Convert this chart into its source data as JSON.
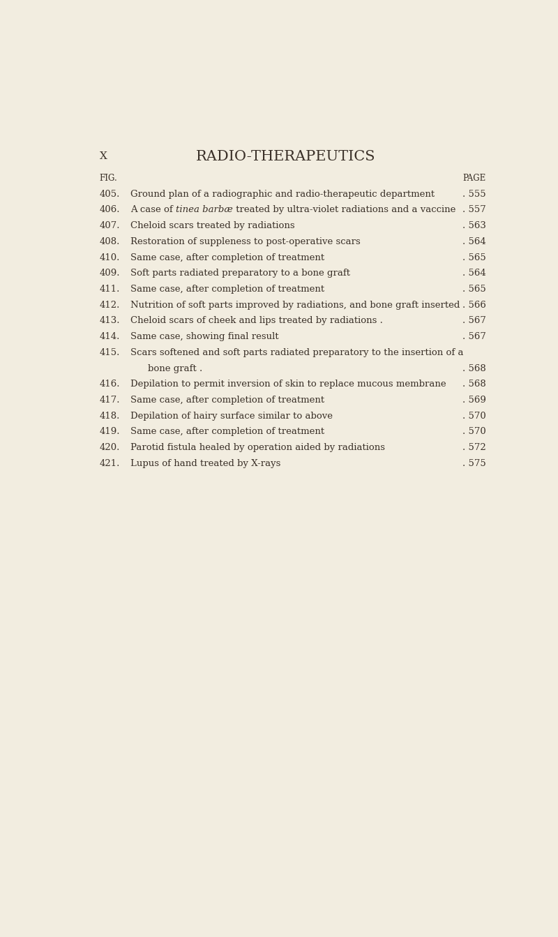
{
  "background_color": "#f2ede0",
  "page_width": 8.0,
  "page_height": 13.43,
  "title": "RADIO-THERAPEUTICS",
  "chapter_letter": "X",
  "col_header_left": "FIG.",
  "col_header_right": "PAGE",
  "title_fontsize": 15,
  "chapter_fontsize": 11,
  "header_fontsize": 8.5,
  "entry_fontsize": 9.5,
  "text_color": "#3a3028",
  "entries": [
    {
      "fig": "405.",
      "text": "Ground plan of a radiographic and radio-therapeutic department",
      "suffix": " .",
      "page": "555",
      "italic_part": null,
      "continuation": false
    },
    {
      "fig": "406.",
      "text_before": "A case of ",
      "italic_part": "tinea barbæ",
      "text_after": " treated by ultra-violet radiations and a vaccine",
      "suffix": "",
      "page": "557",
      "continuation": false
    },
    {
      "fig": "407.",
      "text": "Cheloid scars treated by radiations",
      "suffix": " .",
      "page": "563",
      "italic_part": null,
      "continuation": false
    },
    {
      "fig": "408.",
      "text": "Restoration of suppleness to post-operative scars",
      "suffix": " .",
      "page": "564",
      "italic_part": null,
      "continuation": false
    },
    {
      "fig": "410.",
      "text": "Same case, after completion of treatment",
      "suffix": " .",
      "page": "565",
      "italic_part": null,
      "continuation": false
    },
    {
      "fig": "409.",
      "text": "Soft parts radiated preparatory to a bone graft",
      "suffix": " .",
      "page": "564",
      "italic_part": null,
      "continuation": false
    },
    {
      "fig": "411.",
      "text": "Same case, after completion of treatment",
      "suffix": " .",
      "page": "565",
      "italic_part": null,
      "continuation": false
    },
    {
      "fig": "412.",
      "text": "Nutrition of soft parts improved by radiations, and bone graft inserted",
      "suffix": " .",
      "page": "566",
      "italic_part": null,
      "continuation": false
    },
    {
      "fig": "413.",
      "text": "Cheloid scars of cheek and lips treated by radiations .",
      "suffix": " .",
      "page": "567",
      "italic_part": null,
      "continuation": false
    },
    {
      "fig": "414.",
      "text": "Same case, showing final result",
      "suffix": " .",
      "page": "567",
      "italic_part": null,
      "continuation": false
    },
    {
      "fig": "415.",
      "text": "Scars softened and soft parts radiated preparatory to the insertion of a",
      "suffix": "",
      "page": null,
      "italic_part": null,
      "continuation": false
    },
    {
      "fig": "",
      "text": "bone graft .",
      "suffix": " .",
      "page": "568",
      "italic_part": null,
      "continuation": true
    },
    {
      "fig": "416.",
      "text": "Depilation to permit inversion of skin to replace mucous membrane",
      "suffix": " .",
      "page": "568",
      "italic_part": null,
      "continuation": false
    },
    {
      "fig": "417.",
      "text": "Same case, after completion of treatment",
      "suffix": " .",
      "page": "569",
      "italic_part": null,
      "continuation": false
    },
    {
      "fig": "418.",
      "text": "Depilation of hairy surface similar to above",
      "suffix": " .",
      "page": "570",
      "italic_part": null,
      "continuation": false
    },
    {
      "fig": "419.",
      "text": "Same case, after completion of treatment",
      "suffix": " .",
      "page": "570",
      "italic_part": null,
      "continuation": false
    },
    {
      "fig": "420.",
      "text": "Parotid fistula healed by operation aided by radiations",
      "suffix": " .",
      "page": "572",
      "italic_part": null,
      "continuation": false
    },
    {
      "fig": "421.",
      "text": "Lupus of hand treated by X-rays",
      "suffix": " .",
      "page": "575",
      "italic_part": null,
      "continuation": false
    }
  ]
}
